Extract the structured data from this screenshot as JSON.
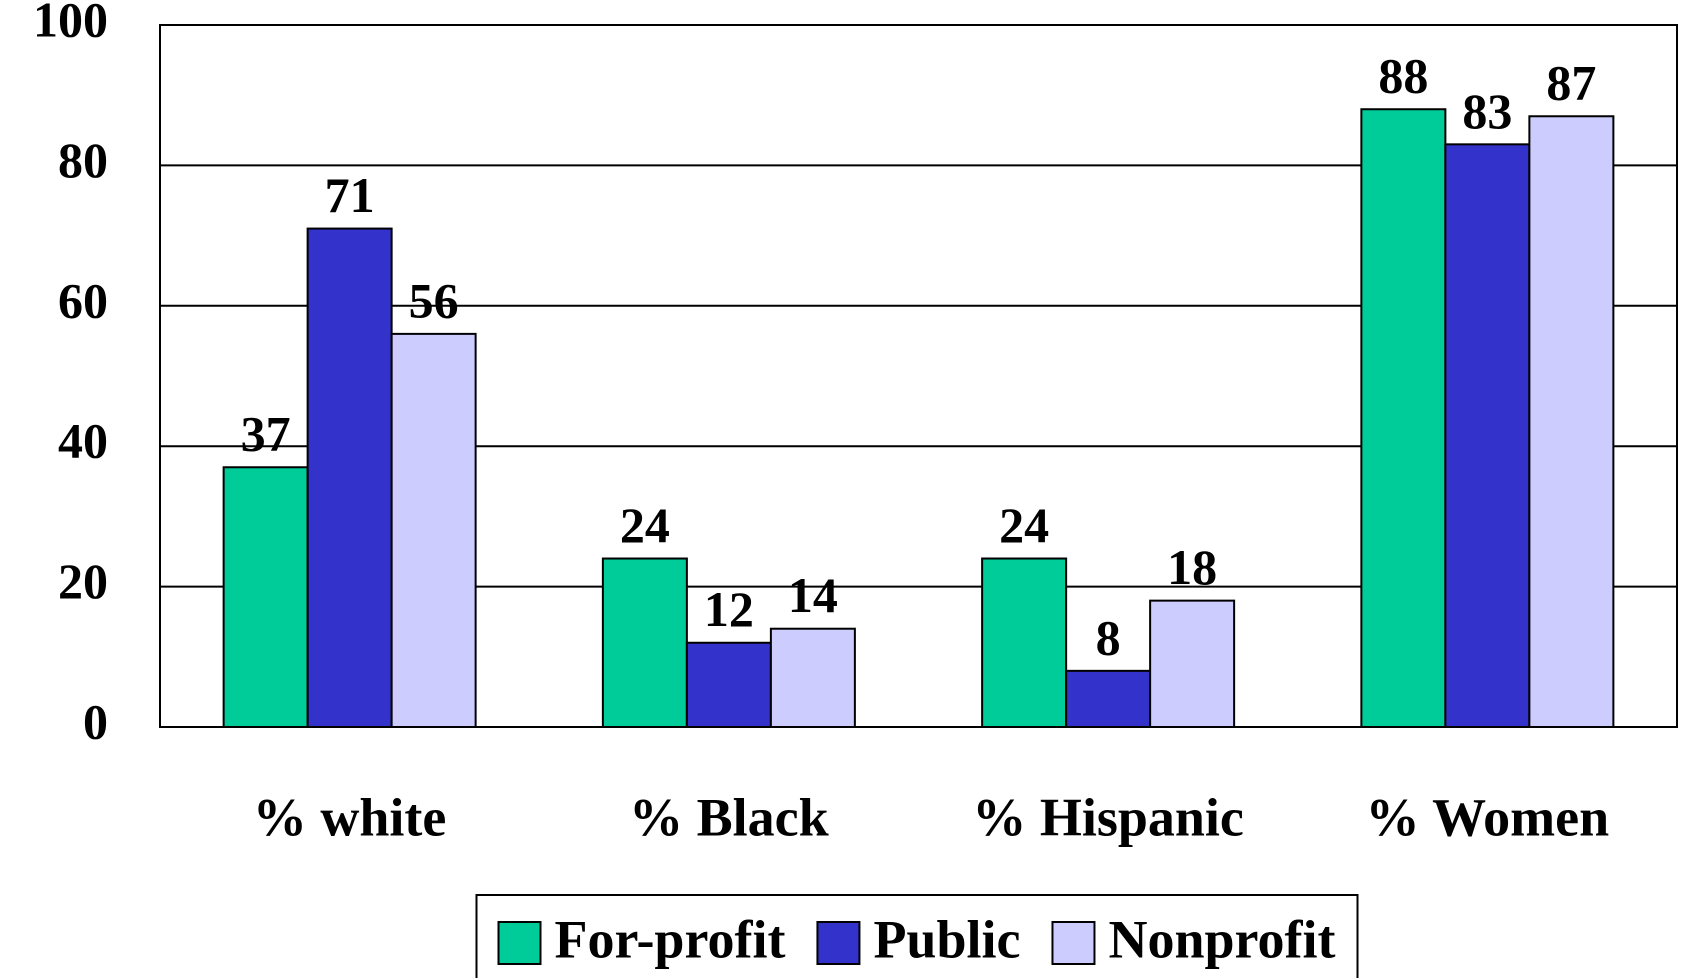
{
  "chart_data": {
    "type": "bar",
    "categories": [
      "% white",
      "% Black",
      "% Hispanic",
      "% Women"
    ],
    "series": [
      {
        "name": "For-profit",
        "color": "#00cc99",
        "values": [
          37,
          24,
          24,
          88
        ]
      },
      {
        "name": "Public",
        "color": "#3333cc",
        "values": [
          71,
          12,
          8,
          83
        ]
      },
      {
        "name": "Nonprofit",
        "color": "#ccccff",
        "values": [
          56,
          14,
          18,
          87
        ]
      }
    ],
    "ylim": [
      0,
      100
    ],
    "yticks": [
      0,
      20,
      40,
      60,
      80,
      100
    ],
    "grid": true,
    "legend": "bottom"
  }
}
